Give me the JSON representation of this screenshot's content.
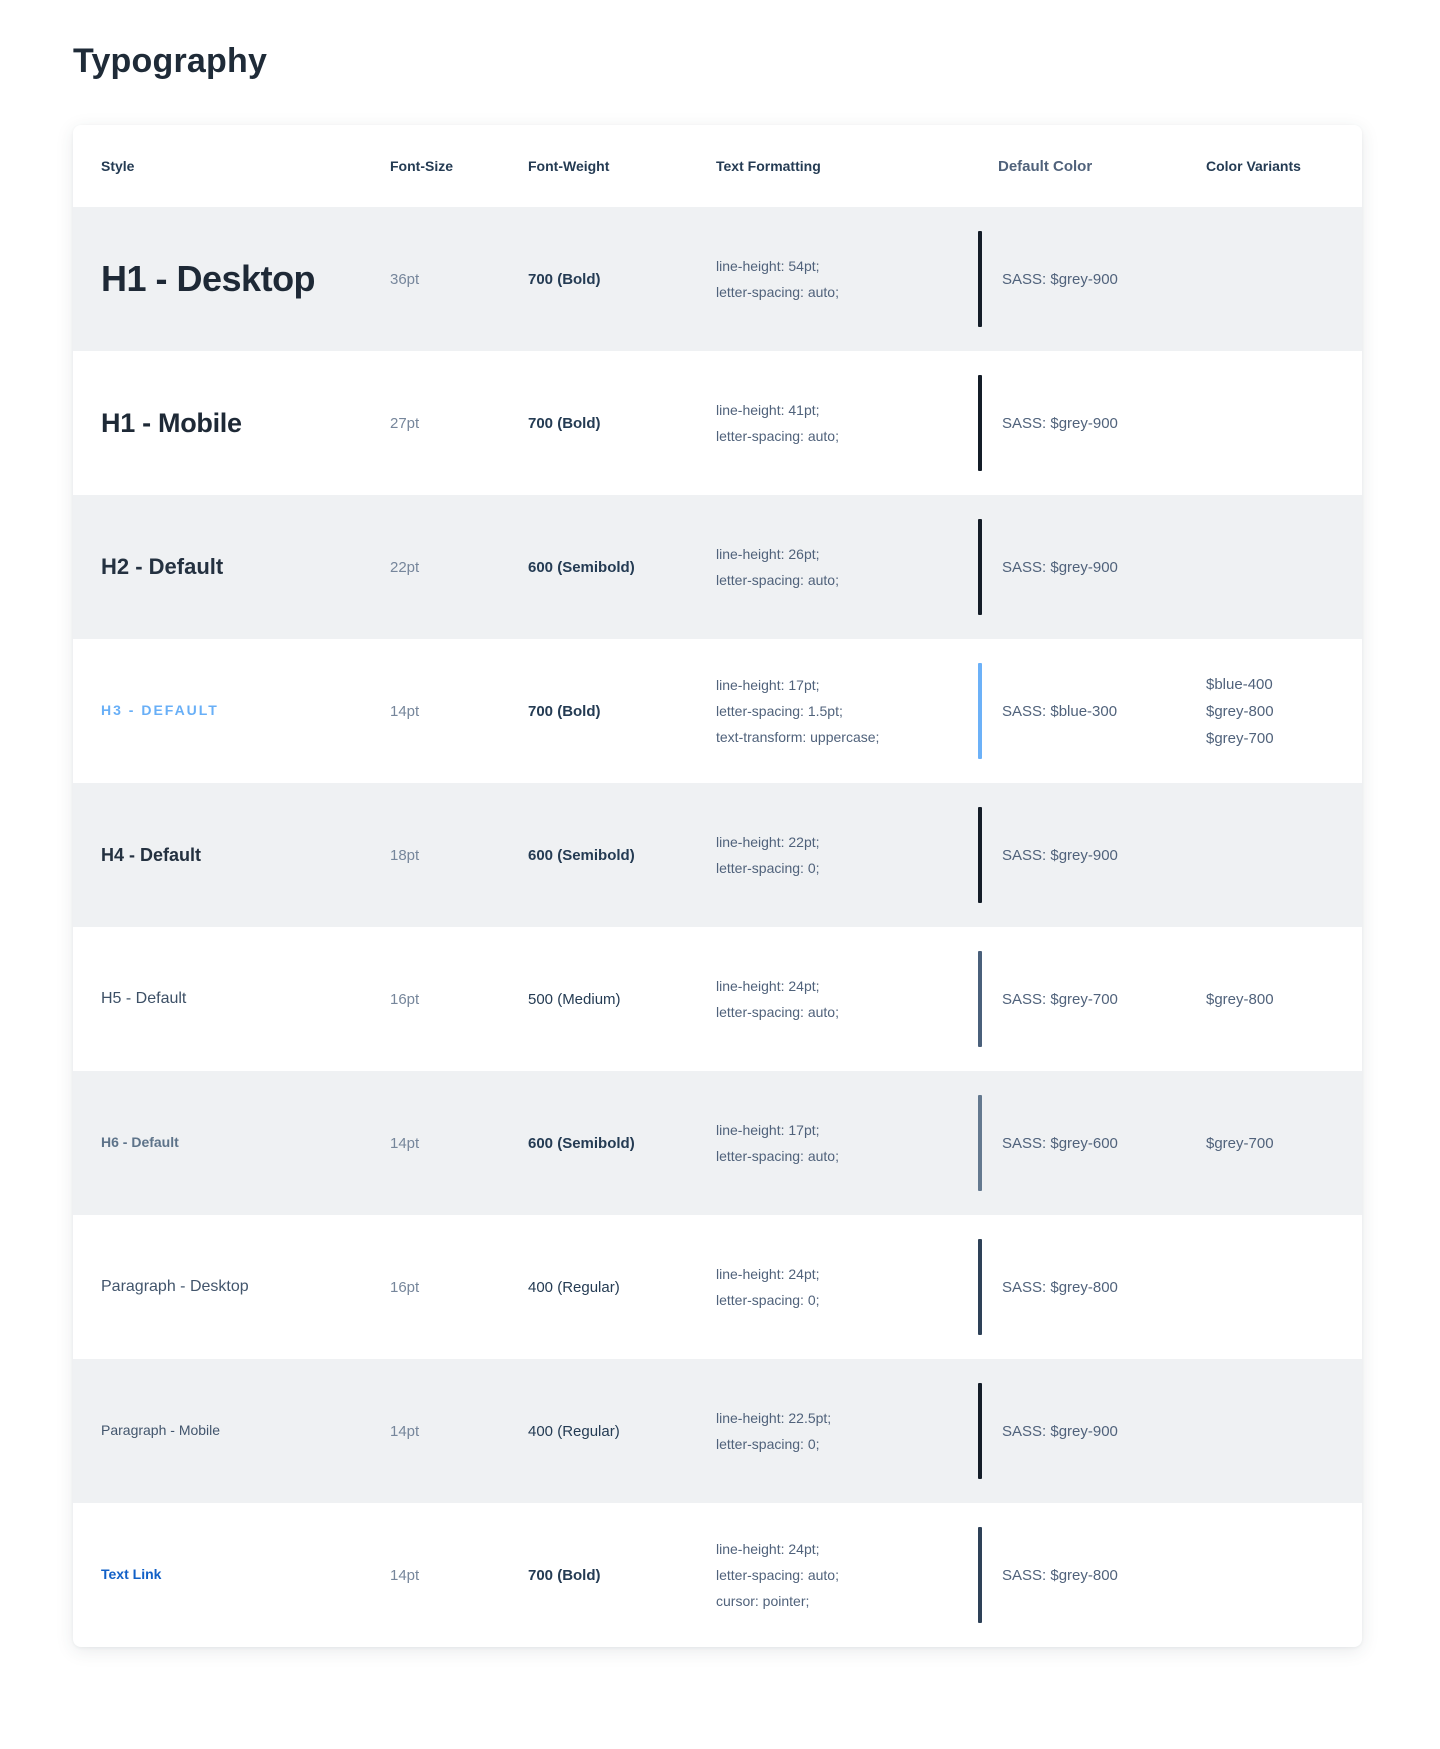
{
  "page": {
    "title": "Typography"
  },
  "table": {
    "columns": [
      "Style",
      "Font-Size",
      "Font-Weight",
      "Text Formatting",
      "Default Color",
      "Color Variants"
    ],
    "rows": [
      {
        "style": "H1 - Desktop",
        "style_key": "h1-desktop",
        "font_size": "36pt",
        "font_weight": "700 (Bold)",
        "weight_num": "700",
        "formatting": [
          "line-height: 54pt;",
          "letter-spacing: auto;"
        ],
        "default_color": "SASS: $grey-900",
        "bar_color": "#141d28",
        "variants": []
      },
      {
        "style": "H1 - Mobile",
        "style_key": "h1-mobile",
        "font_size": "27pt",
        "font_weight": "700 (Bold)",
        "weight_num": "700",
        "formatting": [
          "line-height: 41pt;",
          "letter-spacing: auto;"
        ],
        "default_color": "SASS: $grey-900",
        "bar_color": "#141d28",
        "variants": []
      },
      {
        "style": "H2 - Default",
        "style_key": "h2-default",
        "font_size": "22pt",
        "font_weight": "600 (Semibold)",
        "weight_num": "600",
        "formatting": [
          "line-height: 26pt;",
          "letter-spacing: auto;"
        ],
        "default_color": "SASS: $grey-900",
        "bar_color": "#141d28",
        "variants": []
      },
      {
        "style": "H3 - DEFAULT",
        "style_key": "h3-default",
        "font_size": "14pt",
        "font_weight": "700 (Bold)",
        "weight_num": "700",
        "formatting": [
          "line-height: 17pt;",
          "letter-spacing: 1.5pt;",
          "text-transform: uppercase;"
        ],
        "default_color": "SASS: $blue-300",
        "bar_color": "#6cb1f8",
        "variants": [
          "$blue-400",
          "$grey-800",
          "$grey-700"
        ]
      },
      {
        "style": "H4 - Default",
        "style_key": "h4-default",
        "font_size": "18pt",
        "font_weight": "600 (Semibold)",
        "weight_num": "600",
        "formatting": [
          "line-height: 22pt;",
          "letter-spacing: 0;"
        ],
        "default_color": "SASS: $grey-900",
        "bar_color": "#141d28",
        "variants": []
      },
      {
        "style": "H5 - Default",
        "style_key": "h5-default",
        "font_size": "16pt",
        "font_weight": "500 (Medium)",
        "weight_num": "500",
        "formatting": [
          "line-height: 24pt;",
          "letter-spacing: auto;"
        ],
        "default_color": "SASS: $grey-700",
        "bar_color": "#4a607b",
        "variants": [
          "$grey-800"
        ]
      },
      {
        "style": "H6 - Default",
        "style_key": "h6-default",
        "font_size": "14pt",
        "font_weight": "600 (Semibold)",
        "weight_num": "600",
        "formatting": [
          "line-height: 17pt;",
          "letter-spacing: auto;"
        ],
        "default_color": "SASS: $grey-600",
        "bar_color": "#64798f",
        "variants": [
          "$grey-700"
        ]
      },
      {
        "style": "Paragraph - Desktop",
        "style_key": "paragraph-desktop",
        "font_size": "16pt",
        "font_weight": "400 (Regular)",
        "weight_num": "400",
        "formatting": [
          "line-height: 24pt;",
          "letter-spacing: 0;"
        ],
        "default_color": "SASS: $grey-800",
        "bar_color": "#2e4158",
        "variants": []
      },
      {
        "style": "Paragraph - Mobile",
        "style_key": "paragraph-mobile",
        "font_size": "14pt",
        "font_weight": "400 (Regular)",
        "weight_num": "400",
        "formatting": [
          "line-height: 22.5pt;",
          "letter-spacing: 0;"
        ],
        "default_color": "SASS: $grey-900",
        "bar_color": "#141d28",
        "variants": []
      },
      {
        "style": "Text Link",
        "style_key": "text-link",
        "font_size": "14pt",
        "font_weight": "700 (Bold)",
        "weight_num": "700",
        "formatting": [
          "line-height: 24pt;",
          "letter-spacing: auto;",
          "cursor: pointer;"
        ],
        "default_color": "SASS: $grey-800",
        "bar_color": "#2e4158",
        "variants": []
      }
    ]
  },
  "colors": {
    "row_alt_bg": "#eff1f3",
    "header_text": "#243b53",
    "body_text": "#50627b",
    "font_size_text": "#76869b",
    "accent_blue": "#68aff7",
    "link_blue": "#1160c7",
    "bar_grey_900": "#141d28",
    "bar_grey_800": "#2e4158",
    "bar_grey_700": "#4a607b",
    "bar_grey_600": "#64798f",
    "bar_blue_300": "#6cb1f8"
  }
}
